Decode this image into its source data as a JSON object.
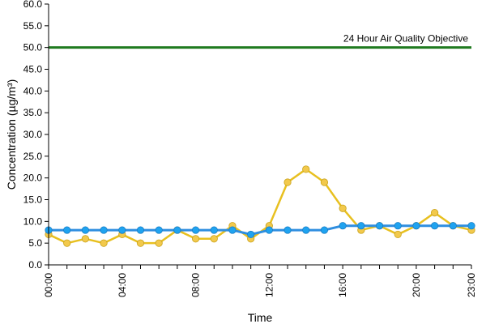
{
  "chart_data": {
    "type": "line",
    "title": "",
    "xlabel": "Time",
    "ylabel": "Concentration (µg/m³)",
    "ylim": [
      0,
      60
    ],
    "y_ticks": [
      "0.0",
      "5.0",
      "10.0",
      "15.0",
      "20.0",
      "25.0",
      "30.0",
      "35.0",
      "40.0",
      "45.0",
      "50.0",
      "55.0",
      "60.0"
    ],
    "x_hours": [
      0,
      1,
      2,
      3,
      4,
      5,
      6,
      7,
      8,
      9,
      10,
      11,
      12,
      13,
      14,
      15,
      16,
      17,
      18,
      19,
      20,
      21,
      22,
      23
    ],
    "x_tick_labels": [
      {
        "hour": 0,
        "label": "00:00"
      },
      {
        "hour": 4,
        "label": "04:00"
      },
      {
        "hour": 8,
        "label": "08:00"
      },
      {
        "hour": 12,
        "label": "12:00"
      },
      {
        "hour": 16,
        "label": "16:00"
      },
      {
        "hour": 20,
        "label": "20:00"
      },
      {
        "hour": 23,
        "label": "23:00"
      }
    ],
    "grid": false,
    "legend": "none",
    "objective": {
      "value": 50,
      "label": "24 Hour Air Quality Objective",
      "color": "#1f7a1f"
    },
    "series": [
      {
        "color": "#e8c020",
        "point_color": "#f2c94c",
        "values": [
          7,
          5,
          6,
          5,
          7,
          5,
          5,
          8,
          6,
          6,
          9,
          6,
          9,
          19,
          22,
          19,
          13,
          8,
          9,
          7,
          9,
          12,
          9,
          8
        ]
      },
      {
        "color": "#2f8ee0",
        "point_color": "#1fa3f0",
        "values": [
          8,
          8,
          8,
          8,
          8,
          8,
          8,
          8,
          8,
          8,
          8,
          7,
          8,
          8,
          8,
          8,
          9,
          9,
          9,
          9,
          9,
          9,
          9,
          9
        ]
      }
    ]
  }
}
